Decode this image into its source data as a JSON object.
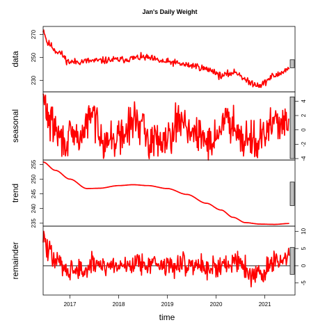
{
  "chart_data": {
    "type": "line",
    "title": "Jan's Daily Weight",
    "xlabel": "time",
    "xlim": [
      2016.45,
      2021.62
    ],
    "x_ticks": [
      2017,
      2018,
      2019,
      2020,
      2021
    ],
    "line_color": "#ff0000",
    "range_bar_color": "#bebebe",
    "grid": false,
    "panels": [
      {
        "name": "data",
        "ylim": [
          220,
          277
        ],
        "y_ticks": [
          230,
          250,
          270
        ],
        "y_tick_side": "left",
        "zero_line": false,
        "range_bar": [
          241,
          248
        ],
        "keypoints": [
          [
            2016.45,
            274
          ],
          [
            2016.55,
            262
          ],
          [
            2016.75,
            255
          ],
          [
            2017.0,
            246
          ],
          [
            2017.5,
            247
          ],
          [
            2018.0,
            248
          ],
          [
            2018.5,
            250
          ],
          [
            2019.0,
            246
          ],
          [
            2019.5,
            243
          ],
          [
            2019.9,
            239
          ],
          [
            2020.1,
            234
          ],
          [
            2020.4,
            237
          ],
          [
            2020.7,
            228
          ],
          [
            2020.9,
            226
          ],
          [
            2021.2,
            234
          ],
          [
            2021.5,
            240
          ]
        ],
        "noise_amplitude": 2.6,
        "noise_seed": 11
      },
      {
        "name": "seasonal",
        "ylim": [
          -4.2,
          5.3
        ],
        "y_ticks": [
          -4,
          -2,
          0,
          2,
          4
        ],
        "y_tick_side": "right",
        "zero_line": false,
        "range_bar": [
          -4,
          4.6
        ],
        "keypoints": [
          [
            2016.45,
            4.2
          ],
          [
            2016.6,
            1
          ],
          [
            2016.85,
            -1.5
          ],
          [
            2017.2,
            -1
          ],
          [
            2017.45,
            2
          ],
          [
            2017.75,
            -1.5
          ],
          [
            2018.05,
            -1
          ],
          [
            2018.35,
            1.5
          ],
          [
            2018.65,
            -1.5
          ],
          [
            2018.95,
            -1
          ],
          [
            2019.3,
            1.5
          ],
          [
            2019.6,
            -1
          ],
          [
            2019.9,
            -1.5
          ],
          [
            2020.25,
            1.5
          ],
          [
            2020.6,
            -1
          ],
          [
            2020.9,
            -1.5
          ],
          [
            2021.25,
            1.5
          ],
          [
            2021.5,
            0
          ]
        ],
        "noise_amplitude": 2.2,
        "noise_seed": 29
      },
      {
        "name": "trend",
        "ylim": [
          234,
          256.5
        ],
        "y_ticks": [
          235,
          240,
          245,
          250,
          255
        ],
        "y_tick_side": "left",
        "zero_line": false,
        "range_bar": [
          241,
          249
        ],
        "keypoints": [
          [
            2016.45,
            255.8
          ],
          [
            2016.7,
            253
          ],
          [
            2017.0,
            250
          ],
          [
            2017.35,
            246.8
          ],
          [
            2017.6,
            246.9
          ],
          [
            2018.0,
            247.8
          ],
          [
            2018.3,
            248.1
          ],
          [
            2018.6,
            247.8
          ],
          [
            2019.0,
            246.8
          ],
          [
            2019.4,
            244.8
          ],
          [
            2019.8,
            241.8
          ],
          [
            2020.1,
            239.5
          ],
          [
            2020.35,
            237
          ],
          [
            2020.6,
            235.2
          ],
          [
            2020.9,
            234.7
          ],
          [
            2021.2,
            234.6
          ],
          [
            2021.5,
            234.9
          ]
        ],
        "noise_amplitude": 0,
        "noise_seed": 0
      },
      {
        "name": "remainder",
        "ylim": [
          -8.5,
          11.5
        ],
        "y_ticks": [
          -5,
          0,
          5,
          10
        ],
        "y_tick_side": "right",
        "zero_line": true,
        "range_bar": [
          -2.5,
          5.3
        ],
        "keypoints": [
          [
            2016.45,
            9
          ],
          [
            2016.55,
            4
          ],
          [
            2016.75,
            1
          ],
          [
            2017.0,
            -1
          ],
          [
            2017.3,
            -1.5
          ],
          [
            2017.5,
            0.5
          ],
          [
            2018.0,
            0
          ],
          [
            2018.5,
            1
          ],
          [
            2019.0,
            0
          ],
          [
            2019.5,
            0.5
          ],
          [
            2019.9,
            -0.5
          ],
          [
            2020.2,
            0
          ],
          [
            2020.45,
            2
          ],
          [
            2020.75,
            -3
          ],
          [
            2020.95,
            -2
          ],
          [
            2021.2,
            1
          ],
          [
            2021.5,
            2
          ]
        ],
        "noise_amplitude": 2.8,
        "noise_seed": 47
      }
    ]
  }
}
